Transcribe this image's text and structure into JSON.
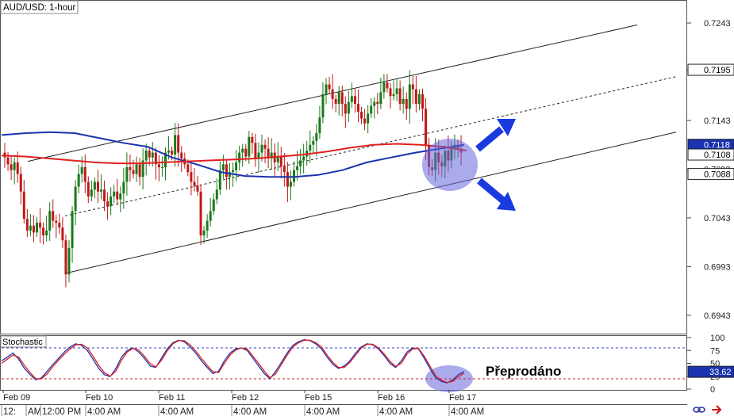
{
  "chart_data": [
    {
      "type": "candlestick",
      "title": "AUD/USD: 1-hour",
      "ylim": [
        0.6925,
        0.7265
      ],
      "grid": false,
      "x_ticks": {
        "dates": [
          "Feb 09",
          "Feb 10",
          "Feb 11",
          "Feb 12",
          "Feb 15",
          "Feb 16",
          "Feb 17"
        ],
        "times": [
          "12:",
          "AM",
          "12:00 PM",
          "4:00 AM",
          "4:00 AM",
          "4:00 AM",
          "4:00 AM",
          "4:00 AM",
          "4:00 AM"
        ]
      },
      "y_ticks": [
        "0.7243",
        "0.7195",
        "0.7143",
        "0.7093",
        "0.7043",
        "0.6993",
        "0.6943"
      ],
      "y_tick_values": [
        0.7243,
        0.7195,
        0.7143,
        0.7093,
        0.7043,
        0.6993,
        0.6943
      ],
      "price_labels": [
        {
          "text": "0.7195",
          "value": 0.7195,
          "style": "white"
        },
        {
          "text": "0.7118",
          "value": 0.7118,
          "style": "blue"
        },
        {
          "text": "0.7108",
          "value": 0.7108,
          "style": "white"
        },
        {
          "text": "0.7088",
          "value": 0.7088,
          "style": "white"
        }
      ],
      "candles_close": [
        0.7105,
        0.7098,
        0.7092,
        0.71,
        0.7088,
        0.707,
        0.7042,
        0.703,
        0.7035,
        0.7028,
        0.7038,
        0.7033,
        0.7025,
        0.703,
        0.705,
        0.704,
        0.7038,
        0.7033,
        0.702,
        0.6985,
        0.7012,
        0.705,
        0.7075,
        0.7088,
        0.7095,
        0.708,
        0.7065,
        0.7072,
        0.708,
        0.707,
        0.7072,
        0.706,
        0.7055,
        0.7065,
        0.707,
        0.7062,
        0.7068,
        0.708,
        0.7095,
        0.7092,
        0.7088,
        0.7098,
        0.7085,
        0.7102,
        0.7112,
        0.7105,
        0.711,
        0.7098,
        0.7095,
        0.7095,
        0.711,
        0.7112,
        0.7108,
        0.7128,
        0.711,
        0.7104,
        0.7098,
        0.709,
        0.708,
        0.7076,
        0.707,
        0.7025,
        0.703,
        0.704,
        0.705,
        0.7062,
        0.7072,
        0.7092,
        0.7098,
        0.7085,
        0.709,
        0.7092,
        0.71,
        0.711,
        0.7114,
        0.7106,
        0.7126,
        0.712,
        0.7104,
        0.711,
        0.7118,
        0.7114,
        0.7104,
        0.711,
        0.71,
        0.7106,
        0.7096,
        0.709,
        0.7075,
        0.708,
        0.7092,
        0.7096,
        0.7102,
        0.7106,
        0.7112,
        0.7118,
        0.7122,
        0.713,
        0.7146,
        0.717,
        0.718,
        0.7175,
        0.7165,
        0.716,
        0.7172,
        0.716,
        0.715,
        0.7162,
        0.7168,
        0.716,
        0.7152,
        0.7145,
        0.714,
        0.715,
        0.7158,
        0.7162,
        0.716,
        0.7172,
        0.7182,
        0.7176,
        0.7168,
        0.717,
        0.7176,
        0.716,
        0.7165,
        0.7155,
        0.718,
        0.7175,
        0.716,
        0.717,
        0.7155,
        0.7118,
        0.7095,
        0.7092,
        0.711,
        0.71,
        0.7096,
        0.7112,
        0.7102,
        0.7114,
        0.7118,
        0.7114,
        0.711
      ],
      "series": [
        {
          "name": "",
          "color": "#1a33b0",
          "values": [
            0.7128,
            0.713,
            0.7131,
            0.713,
            0.7125,
            0.712,
            0.7116,
            0.7105,
            0.7098,
            0.709,
            0.7086,
            0.7085,
            0.7085,
            0.7087,
            0.7092,
            0.71,
            0.7105,
            0.711,
            0.7114,
            0.7118
          ]
        },
        {
          "name": "",
          "color": "#e02020",
          "values": [
            0.7107,
            0.7106,
            0.7104,
            0.7102,
            0.71,
            0.7099,
            0.7099,
            0.71,
            0.7101,
            0.7102,
            0.7103,
            0.7104,
            0.7106,
            0.7108,
            0.7111,
            0.7115,
            0.7118,
            0.7119,
            0.7118,
            0.7116,
            0.7112
          ]
        }
      ],
      "channel": {
        "upper": [
          [
            0.7101,
            0.7241
          ]
        ],
        "middle": [
          [
            0.7045,
            0.7188
          ]
        ],
        "lower": [
          [
            0.6986,
            0.7131
          ]
        ]
      },
      "arrows": [
        "up",
        "down"
      ],
      "highlight": "oversold zone"
    },
    {
      "type": "line",
      "title": "Stochastic",
      "ylim": [
        0,
        100
      ],
      "y_ticks": [
        "100",
        "75",
        "50",
        "25",
        "0"
      ],
      "y_tick_values": [
        100,
        75,
        50,
        25,
        0
      ],
      "levels": [
        80,
        20
      ],
      "value_label": "33.62",
      "value": 33.62,
      "annotation": "Přeprodáno",
      "series": [
        {
          "name": "",
          "color": "#1a33b0",
          "values": [
            55,
            62,
            70,
            58,
            40,
            28,
            18,
            22,
            35,
            48,
            60,
            72,
            82,
            88,
            85,
            75,
            58,
            40,
            28,
            24,
            40,
            62,
            75,
            80,
            72,
            60,
            45,
            42,
            60,
            78,
            90,
            95,
            92,
            82,
            70,
            55,
            42,
            30,
            35,
            55,
            70,
            78,
            80,
            75,
            60,
            45,
            30,
            20,
            35,
            52,
            70,
            85,
            92,
            96,
            94,
            88,
            78,
            62,
            48,
            40,
            45,
            55,
            70,
            82,
            88,
            86,
            78,
            65,
            50,
            42,
            55,
            72,
            80,
            78,
            60,
            40,
            22,
            15,
            12,
            18,
            28,
            34
          ]
        },
        {
          "name": "",
          "color": "#e02020",
          "values": [
            50,
            58,
            66,
            62,
            46,
            32,
            20,
            20,
            30,
            44,
            56,
            68,
            78,
            86,
            87,
            80,
            64,
            46,
            32,
            25,
            35,
            56,
            72,
            79,
            76,
            64,
            50,
            43,
            56,
            74,
            88,
            94,
            94,
            86,
            74,
            60,
            46,
            34,
            32,
            50,
            66,
            76,
            80,
            78,
            64,
            50,
            35,
            22,
            30,
            48,
            66,
            82,
            90,
            95,
            95,
            90,
            82,
            66,
            52,
            42,
            42,
            52,
            66,
            80,
            87,
            87,
            80,
            68,
            54,
            44,
            50,
            68,
            78,
            79,
            64,
            45,
            26,
            17,
            13,
            15,
            24,
            31
          ]
        }
      ]
    }
  ],
  "colors": {
    "bull": "#1a7a1a",
    "bear": "#c01818",
    "ma_blue": "#1a33b0",
    "ma_red": "#e02020",
    "arrow": "#1a3ae0",
    "highlight": "#6666dd",
    "price_label_blue": "#1a33b0"
  },
  "toolbar": {
    "icons": [
      "link-icon",
      "forward-arrow-icon"
    ]
  }
}
